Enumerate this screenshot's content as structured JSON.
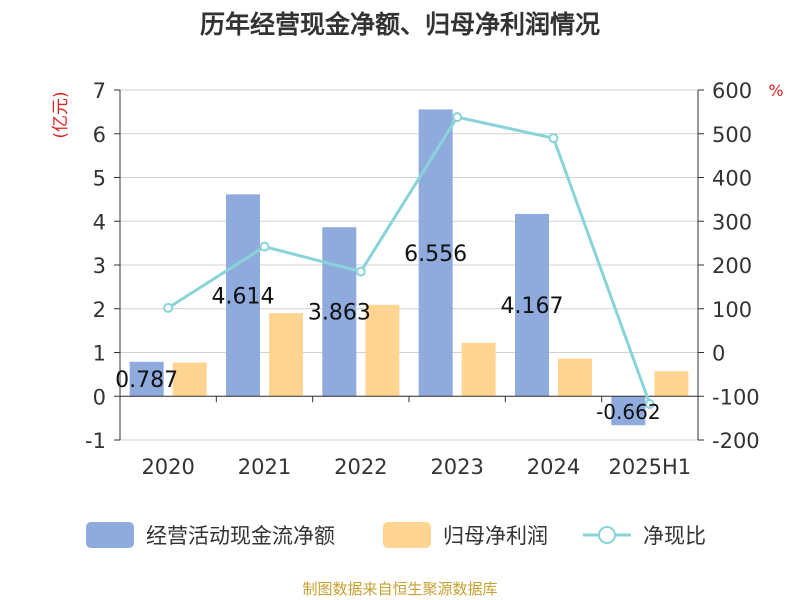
{
  "chart_data": {
    "type": "bar",
    "title": "历年经营现金净额、归母净利润情况",
    "categories": [
      "2020",
      "2021",
      "2022",
      "2023",
      "2024",
      "2025H1"
    ],
    "series": [
      {
        "name": "经营活动现金流净额",
        "type": "bar",
        "axis": "left",
        "values": [
          0.787,
          4.614,
          3.863,
          6.556,
          4.167,
          -0.662
        ],
        "labels": [
          "0.787",
          "4.614",
          "3.863",
          "6.556",
          "4.167",
          "-0.662"
        ]
      },
      {
        "name": "归母净利润",
        "type": "bar",
        "axis": "left",
        "values": [
          0.77,
          1.9,
          2.09,
          1.22,
          0.86,
          0.57
        ]
      },
      {
        "name": "净现比",
        "type": "line",
        "axis": "right",
        "values": [
          102,
          242,
          185,
          538,
          490,
          -118
        ]
      }
    ],
    "y_left": {
      "label": "(亿元)",
      "min": -1,
      "max": 7,
      "ticks": [
        "-1",
        "0",
        "1",
        "2",
        "3",
        "4",
        "5",
        "6",
        "7"
      ]
    },
    "y_right": {
      "label": "%",
      "min": -200,
      "max": 600,
      "ticks": [
        "-200",
        "-100",
        "0",
        "100",
        "200",
        "300",
        "400",
        "500",
        "600"
      ]
    },
    "grid": true,
    "legend_position": "bottom",
    "colors": {
      "bar1": "#8faadc",
      "bar2": "#ffd591",
      "line": "#88d4d8",
      "unit_label": "#e02020",
      "source": "#c8a032",
      "grid": "#d0d0d0",
      "text": "#333333",
      "title": "#333333"
    }
  },
  "source_note": "制图数据来自恒生聚源数据库"
}
